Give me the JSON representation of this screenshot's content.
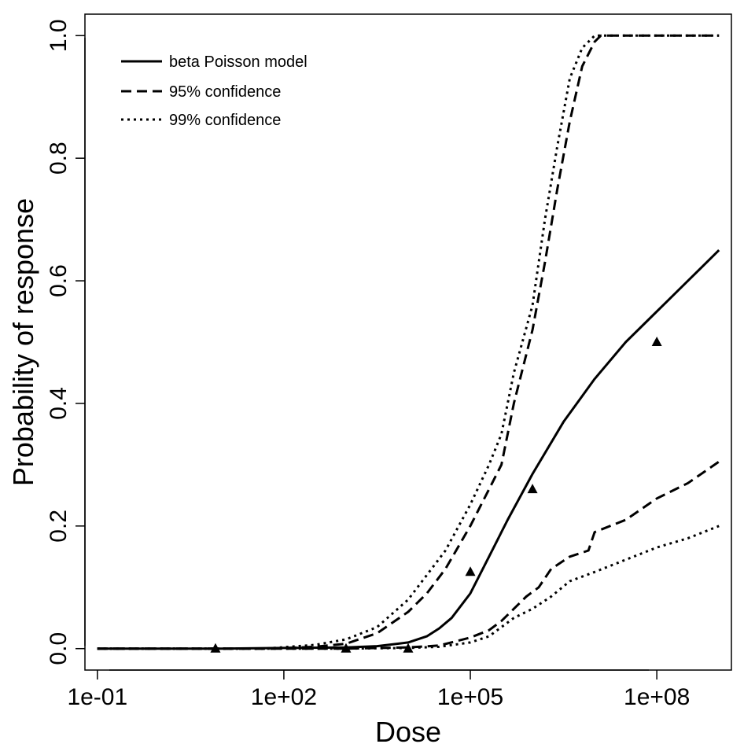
{
  "chart_data": {
    "type": "line",
    "title": "",
    "xlabel": "Dose",
    "ylabel": "Probability of response",
    "x_scale": "log10",
    "xlim_log10": [
      -1.2,
      9.2
    ],
    "ylim": [
      -0.035,
      1.035
    ],
    "grid": false,
    "x_ticks": [
      {
        "log10": -1,
        "label": "1e-01"
      },
      {
        "log10": 2,
        "label": "1e+02"
      },
      {
        "log10": 5,
        "label": "1e+05"
      },
      {
        "log10": 8,
        "label": "1e+08"
      }
    ],
    "y_ticks": [
      {
        "value": 0.0,
        "label": "0.0"
      },
      {
        "value": 0.2,
        "label": "0.2"
      },
      {
        "value": 0.4,
        "label": "0.4"
      },
      {
        "value": 0.6,
        "label": "0.6"
      },
      {
        "value": 0.8,
        "label": "0.8"
      },
      {
        "value": 1.0,
        "label": "1.0"
      }
    ],
    "legend": {
      "position": "top-left",
      "entries": [
        {
          "label": "beta Poisson model",
          "style": "solid"
        },
        {
          "label": "95% confidence",
          "style": "dashed"
        },
        {
          "label": "99% confidence",
          "style": "dotted"
        }
      ]
    },
    "series": [
      {
        "name": "beta Poisson model",
        "style": "solid",
        "points": [
          [
            -1,
            0
          ],
          [
            1,
            0
          ],
          [
            2,
            0.001
          ],
          [
            3,
            0.002
          ],
          [
            3.5,
            0.004
          ],
          [
            4,
            0.01
          ],
          [
            4.3,
            0.02
          ],
          [
            4.5,
            0.033
          ],
          [
            4.7,
            0.05
          ],
          [
            5,
            0.09
          ],
          [
            5.3,
            0.15
          ],
          [
            5.6,
            0.21
          ],
          [
            6,
            0.285
          ],
          [
            6.5,
            0.37
          ],
          [
            7,
            0.44
          ],
          [
            7.5,
            0.5
          ],
          [
            8,
            0.55
          ],
          [
            8.5,
            0.6
          ],
          [
            9,
            0.65
          ]
        ]
      },
      {
        "name": "95% confidence upper",
        "style": "dashed",
        "points": [
          [
            -1,
            0
          ],
          [
            1.8,
            0
          ],
          [
            2.5,
            0.003
          ],
          [
            3,
            0.008
          ],
          [
            3.5,
            0.025
          ],
          [
            4,
            0.06
          ],
          [
            4.3,
            0.09
          ],
          [
            4.6,
            0.13
          ],
          [
            5,
            0.2
          ],
          [
            5.3,
            0.26
          ],
          [
            5.5,
            0.3
          ],
          [
            5.7,
            0.4
          ],
          [
            6,
            0.52
          ],
          [
            6.2,
            0.63
          ],
          [
            6.4,
            0.75
          ],
          [
            6.6,
            0.86
          ],
          [
            6.8,
            0.95
          ],
          [
            7,
            0.99
          ],
          [
            7.1,
            1.0
          ],
          [
            9,
            1.0
          ]
        ]
      },
      {
        "name": "95% confidence lower",
        "style": "dashed",
        "points": [
          [
            -1,
            0
          ],
          [
            3,
            0
          ],
          [
            4,
            0.002
          ],
          [
            4.5,
            0.005
          ],
          [
            5,
            0.018
          ],
          [
            5.3,
            0.03
          ],
          [
            5.5,
            0.045
          ],
          [
            5.7,
            0.065
          ],
          [
            5.9,
            0.085
          ],
          [
            6.1,
            0.1
          ],
          [
            6.3,
            0.13
          ],
          [
            6.6,
            0.15
          ],
          [
            6.9,
            0.16
          ],
          [
            7,
            0.19
          ],
          [
            7.5,
            0.21
          ],
          [
            8,
            0.245
          ],
          [
            8.5,
            0.27
          ],
          [
            9,
            0.305
          ]
        ]
      },
      {
        "name": "99% confidence upper",
        "style": "dotted",
        "points": [
          [
            -1,
            0
          ],
          [
            1.7,
            0
          ],
          [
            2.5,
            0.006
          ],
          [
            3,
            0.015
          ],
          [
            3.5,
            0.035
          ],
          [
            4,
            0.08
          ],
          [
            4.3,
            0.12
          ],
          [
            4.6,
            0.16
          ],
          [
            5,
            0.235
          ],
          [
            5.3,
            0.3
          ],
          [
            5.5,
            0.35
          ],
          [
            5.7,
            0.45
          ],
          [
            6,
            0.56
          ],
          [
            6.2,
            0.7
          ],
          [
            6.4,
            0.82
          ],
          [
            6.6,
            0.93
          ],
          [
            6.8,
            0.98
          ],
          [
            7,
            1.0
          ],
          [
            9,
            1.0
          ]
        ]
      },
      {
        "name": "99% confidence lower",
        "style": "dotted",
        "points": [
          [
            -1,
            0
          ],
          [
            3,
            0
          ],
          [
            4,
            0.001
          ],
          [
            4.5,
            0.003
          ],
          [
            5,
            0.01
          ],
          [
            5.3,
            0.02
          ],
          [
            5.5,
            0.035
          ],
          [
            5.7,
            0.05
          ],
          [
            6,
            0.065
          ],
          [
            6.3,
            0.085
          ],
          [
            6.6,
            0.11
          ],
          [
            7,
            0.125
          ],
          [
            7.5,
            0.145
          ],
          [
            8,
            0.165
          ],
          [
            8.5,
            0.18
          ],
          [
            9,
            0.2
          ]
        ]
      }
    ],
    "observations": {
      "marker": "triangle",
      "points": [
        [
          0.9,
          0.0
        ],
        [
          3.0,
          0.0
        ],
        [
          4.0,
          0.0
        ],
        [
          5.0,
          0.125
        ],
        [
          6.0,
          0.26
        ],
        [
          8.0,
          0.5
        ]
      ]
    }
  }
}
